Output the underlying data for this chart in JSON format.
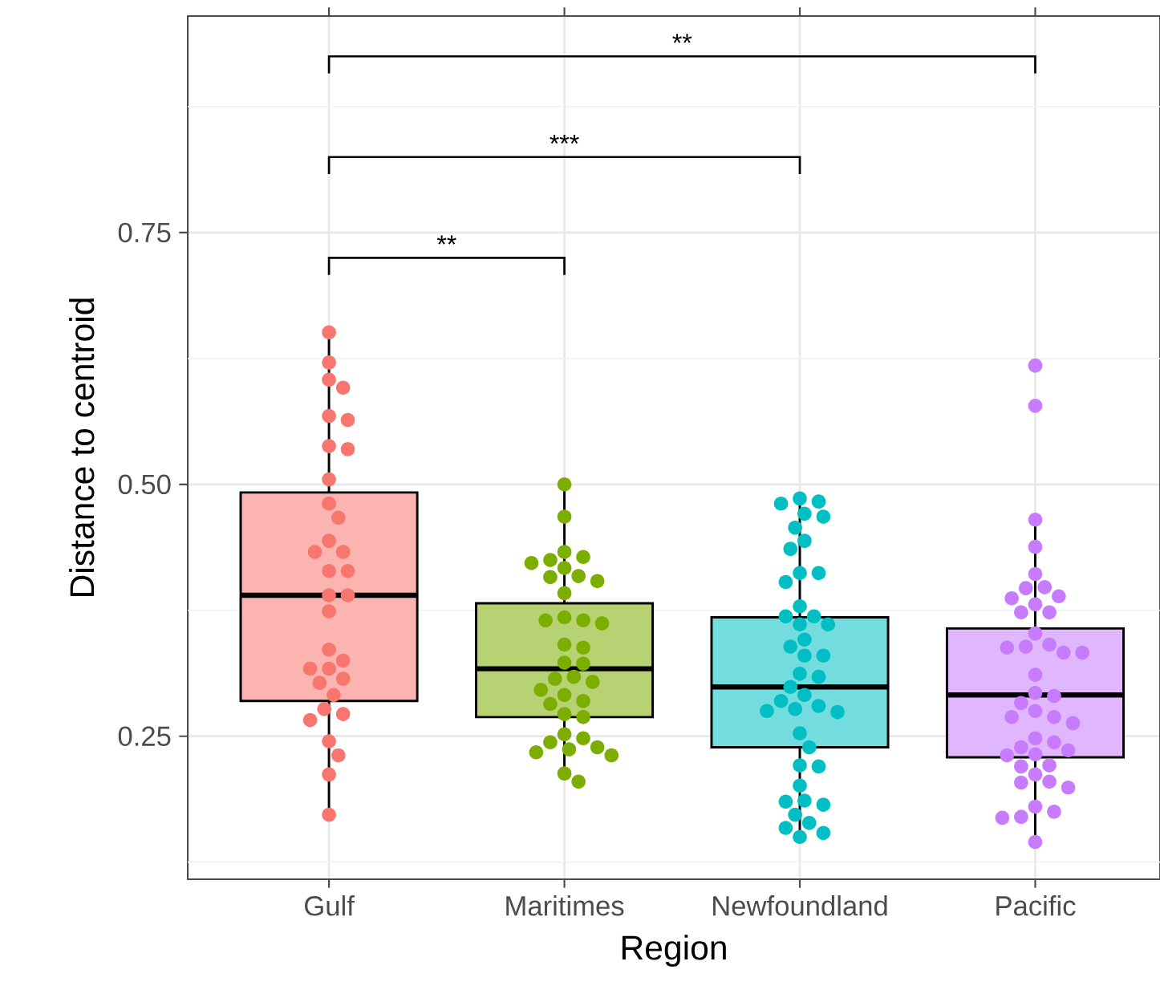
{
  "chart_data": {
    "type": "box",
    "xlabel": "Region",
    "ylabel": "Distance to centroid",
    "categories": [
      "Gulf",
      "Maritimes",
      "Newfoundland",
      "Pacific"
    ],
    "colors": [
      "#fbb4af",
      "#b7d273",
      "#73dcdf",
      "#e0b7ff"
    ],
    "boxes": [
      {
        "low": 0.17,
        "q1": 0.285,
        "median": 0.39,
        "q3": 0.492,
        "high": 0.651
      },
      {
        "low": 0.209,
        "q1": 0.269,
        "median": 0.317,
        "q3": 0.382,
        "high": 0.498
      },
      {
        "low": 0.148,
        "q1": 0.239,
        "median": 0.299,
        "q3": 0.368,
        "high": 0.484
      },
      {
        "low": 0.145,
        "q1": 0.229,
        "median": 0.291,
        "q3": 0.357,
        "high": 0.463
      }
    ],
    "series": [
      {
        "type": "scatter",
        "color": "#f8766d",
        "x": [
          "Gulf",
          "Gulf",
          "Gulf",
          "Gulf",
          "Gulf",
          "Gulf",
          "Gulf",
          "Gulf",
          "Gulf",
          "Gulf",
          "Gulf",
          "Gulf",
          "Gulf",
          "Gulf",
          "Gulf",
          "Gulf",
          "Gulf",
          "Gulf",
          "Gulf",
          "Gulf",
          "Gulf",
          "Gulf",
          "Gulf",
          "Gulf",
          "Gulf",
          "Gulf",
          "Gulf",
          "Gulf",
          "Gulf",
          "Gulf",
          "Gulf",
          "Gulf",
          "Gulf"
        ],
        "values": [
          0.651,
          0.621,
          0.604,
          0.596,
          0.568,
          0.564,
          0.538,
          0.535,
          0.505,
          0.481,
          0.467,
          0.444,
          0.433,
          0.433,
          0.414,
          0.414,
          0.39,
          0.39,
          0.374,
          0.336,
          0.325,
          0.317,
          0.317,
          0.307,
          0.303,
          0.291,
          0.277,
          0.272,
          0.266,
          0.245,
          0.231,
          0.212,
          0.172
        ]
      },
      {
        "type": "scatter",
        "color": "#7cae00",
        "x": [
          "Maritimes",
          "Maritimes",
          "Maritimes",
          "Maritimes",
          "Maritimes",
          "Maritimes",
          "Maritimes",
          "Maritimes",
          "Maritimes",
          "Maritimes",
          "Maritimes",
          "Maritimes",
          "Maritimes",
          "Maritimes",
          "Maritimes",
          "Maritimes",
          "Maritimes",
          "Maritimes",
          "Maritimes",
          "Maritimes",
          "Maritimes",
          "Maritimes",
          "Maritimes",
          "Maritimes",
          "Maritimes",
          "Maritimes",
          "Maritimes",
          "Maritimes",
          "Maritimes",
          "Maritimes",
          "Maritimes",
          "Maritimes",
          "Maritimes",
          "Maritimes",
          "Maritimes",
          "Maritimes",
          "Maritimes"
        ],
        "values": [
          0.5,
          0.468,
          0.433,
          0.428,
          0.425,
          0.422,
          0.417,
          0.409,
          0.408,
          0.404,
          0.392,
          0.368,
          0.365,
          0.365,
          0.362,
          0.341,
          0.338,
          0.323,
          0.322,
          0.309,
          0.307,
          0.304,
          0.296,
          0.291,
          0.285,
          0.282,
          0.272,
          0.269,
          0.252,
          0.248,
          0.244,
          0.239,
          0.237,
          0.234,
          0.231,
          0.213,
          0.205
        ]
      },
      {
        "type": "scatter",
        "color": "#00bfc4",
        "x": [
          "Newfoundland",
          "Newfoundland",
          "Newfoundland",
          "Newfoundland",
          "Newfoundland",
          "Newfoundland",
          "Newfoundland",
          "Newfoundland",
          "Newfoundland",
          "Newfoundland",
          "Newfoundland",
          "Newfoundland",
          "Newfoundland",
          "Newfoundland",
          "Newfoundland",
          "Newfoundland",
          "Newfoundland",
          "Newfoundland",
          "Newfoundland",
          "Newfoundland",
          "Newfoundland",
          "Newfoundland",
          "Newfoundland",
          "Newfoundland",
          "Newfoundland",
          "Newfoundland",
          "Newfoundland",
          "Newfoundland",
          "Newfoundland",
          "Newfoundland",
          "Newfoundland",
          "Newfoundland",
          "Newfoundland",
          "Newfoundland",
          "Newfoundland",
          "Newfoundland",
          "Newfoundland",
          "Newfoundland",
          "Newfoundland",
          "Newfoundland",
          "Newfoundland",
          "Newfoundland"
        ],
        "values": [
          0.486,
          0.483,
          0.481,
          0.471,
          0.468,
          0.457,
          0.444,
          0.436,
          0.412,
          0.412,
          0.403,
          0.379,
          0.369,
          0.369,
          0.361,
          0.361,
          0.346,
          0.339,
          0.33,
          0.33,
          0.312,
          0.309,
          0.299,
          0.291,
          0.285,
          0.28,
          0.277,
          0.275,
          0.274,
          0.253,
          0.239,
          0.221,
          0.22,
          0.201,
          0.186,
          0.185,
          0.182,
          0.172,
          0.164,
          0.159,
          0.154,
          0.15
        ]
      },
      {
        "type": "scatter",
        "color": "#c77cff",
        "x": [
          "Pacific",
          "Pacific",
          "Pacific",
          "Pacific",
          "Pacific",
          "Pacific",
          "Pacific",
          "Pacific",
          "Pacific",
          "Pacific",
          "Pacific",
          "Pacific",
          "Pacific",
          "Pacific",
          "Pacific",
          "Pacific",
          "Pacific",
          "Pacific",
          "Pacific",
          "Pacific",
          "Pacific",
          "Pacific",
          "Pacific",
          "Pacific",
          "Pacific",
          "Pacific",
          "Pacific",
          "Pacific",
          "Pacific",
          "Pacific",
          "Pacific",
          "Pacific",
          "Pacific",
          "Pacific",
          "Pacific",
          "Pacific",
          "Pacific",
          "Pacific",
          "Pacific",
          "Pacific",
          "Pacific",
          "Pacific",
          "Pacific"
        ],
        "values": [
          0.618,
          0.578,
          0.465,
          0.438,
          0.411,
          0.398,
          0.397,
          0.389,
          0.387,
          0.381,
          0.373,
          0.373,
          0.352,
          0.341,
          0.339,
          0.338,
          0.333,
          0.333,
          0.311,
          0.293,
          0.29,
          0.283,
          0.275,
          0.269,
          0.269,
          0.263,
          0.248,
          0.244,
          0.239,
          0.236,
          0.232,
          0.231,
          0.221,
          0.22,
          0.212,
          0.205,
          0.204,
          0.199,
          0.18,
          0.175,
          0.17,
          0.169,
          0.145
        ]
      }
    ],
    "marker": "circle",
    "ylim": [
      0.108,
      0.965
    ],
    "yticks": [
      {
        "value": 0.125,
        "label": null
      },
      0.25,
      {
        "value": 0.375,
        "label": null
      },
      {
        "value": 0.5,
        "label": "0.50"
      },
      {
        "value": 0.625,
        "label": null
      },
      0.75,
      {
        "value": 0.875,
        "label": null
      }
    ],
    "grid": true,
    "annotations": [
      "**",
      "***",
      "**"
    ]
  }
}
